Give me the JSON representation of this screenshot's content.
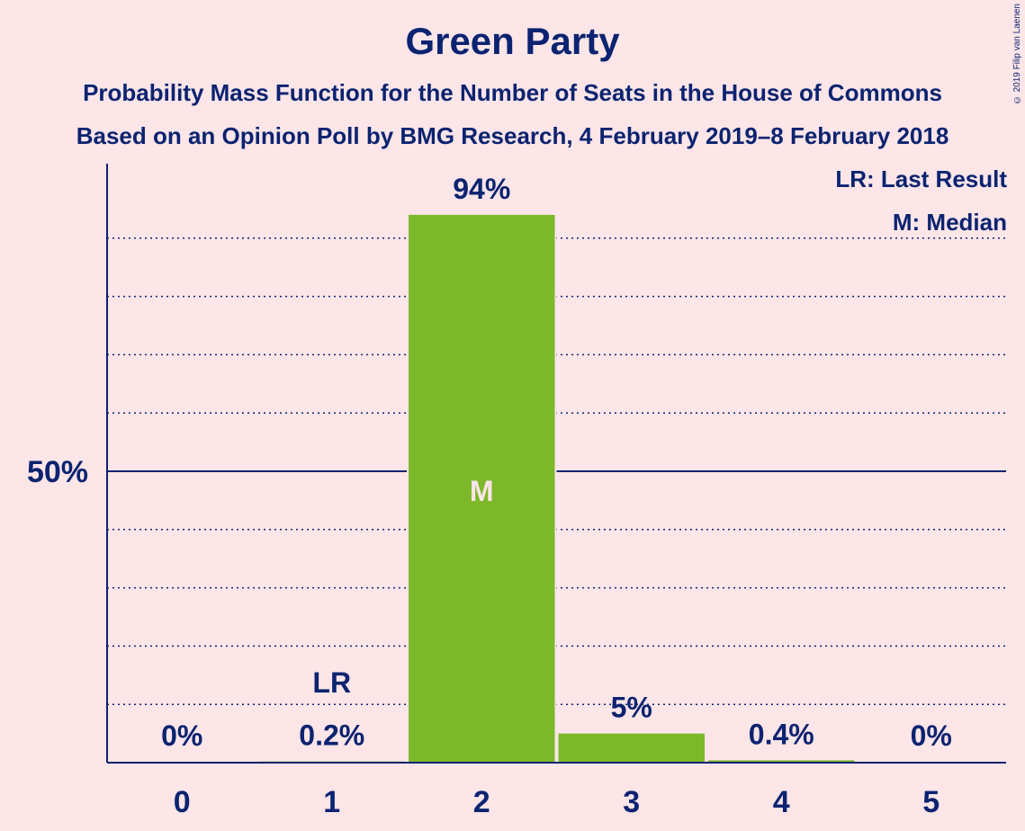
{
  "chart_data": {
    "type": "bar",
    "title": "Green Party",
    "subtitle": "Probability Mass Function for the Number of Seats in the House of Commons",
    "subtitle2": "Based on an Opinion Poll by BMG Research, 4 February 2019–8 February 2018",
    "categories": [
      "0",
      "1",
      "2",
      "3",
      "4",
      "5"
    ],
    "values": [
      0,
      0.2,
      94,
      5,
      0.4,
      0
    ],
    "value_labels": [
      "0%",
      "0.2%",
      "94%",
      "5%",
      "0.4%",
      "0%"
    ],
    "ylim": [
      0,
      100
    ],
    "ytick_labels": [
      {
        "value": 50,
        "label": "50%"
      }
    ],
    "minor_gridlines": [
      10,
      20,
      30,
      40,
      60,
      70,
      80,
      90
    ],
    "last_result": {
      "category": "1",
      "label": "LR"
    },
    "median": {
      "category": "2",
      "label": "M"
    },
    "legend": [
      "LR: Last Result",
      "M: Median"
    ],
    "legend_position": "top-right",
    "colors": {
      "bar": "#7db82b",
      "axis": "#0b2370",
      "background": "#fde5e8",
      "median_label": "#fde5e8"
    }
  },
  "copyright": "© 2019 Filip van Laenen"
}
